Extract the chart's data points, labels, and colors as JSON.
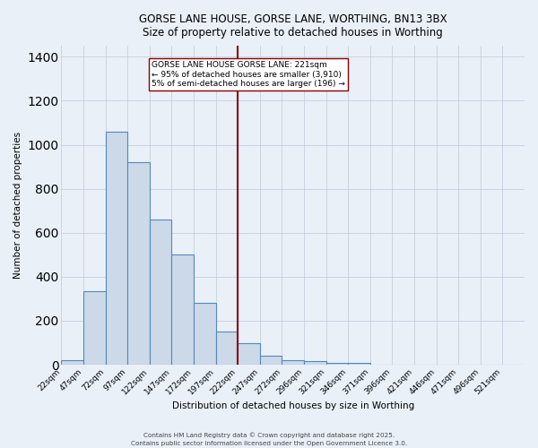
{
  "title": "GORSE LANE HOUSE, GORSE LANE, WORTHING, BN13 3BX",
  "subtitle": "Size of property relative to detached houses in Worthing",
  "xlabel": "Distribution of detached houses by size in Worthing",
  "ylabel": "Number of detached properties",
  "bar_labels": [
    "22sqm",
    "47sqm",
    "72sqm",
    "97sqm",
    "122sqm",
    "147sqm",
    "172sqm",
    "197sqm",
    "222sqm",
    "247sqm",
    "272sqm",
    "296sqm",
    "321sqm",
    "346sqm",
    "371sqm",
    "396sqm",
    "421sqm",
    "446sqm",
    "471sqm",
    "496sqm",
    "521sqm"
  ],
  "bar_heights": [
    20,
    335,
    1060,
    920,
    660,
    500,
    280,
    150,
    100,
    40,
    20,
    15,
    10,
    8,
    0,
    0,
    0,
    0,
    0,
    0,
    0
  ],
  "bar_color": "#ccd9e8",
  "bar_edgecolor": "#5588bb",
  "vline_color": "#8B0000",
  "annotation_text": "GORSE LANE HOUSE GORSE LANE: 221sqm\n← 95% of detached houses are smaller (3,910)\n5% of semi-detached houses are larger (196) →",
  "annotation_box_color": "#ffffff",
  "annotation_box_edgecolor": "#8B0000",
  "ylim": [
    0,
    1450
  ],
  "background_color": "#eaf0f8",
  "grid_color": "#c0c8d8",
  "footer_line1": "Contains HM Land Registry data © Crown copyright and database right 2025.",
  "footer_line2": "Contains public sector information licensed under the Open Government Licence 3.0."
}
